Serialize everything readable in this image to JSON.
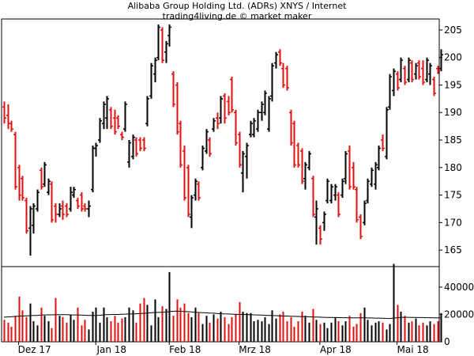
{
  "header": {
    "title": "Alibaba Group Holding Ltd. (ADRs) XNYS / Internet",
    "subtitle": "trading4living.de © market maker"
  },
  "colors": {
    "up": "#000000",
    "down": "#e01010",
    "frame": "#000000",
    "avg": "#000000"
  },
  "chart_data": [
    {
      "type": "ohlc",
      "title": "Alibaba Group Holding Ltd. (ADRs) XNYS / Internet",
      "ylim": [
        162,
        207
      ],
      "yticks": [
        165,
        170,
        175,
        180,
        185,
        190,
        195,
        200,
        205
      ],
      "grid": false,
      "month_labels": [
        "Dez 17",
        "Jan 18",
        "Feb 18",
        "Mrz 18",
        "Apr 18",
        "Mai 18"
      ],
      "month_label_index": [
        4,
        25,
        45,
        64,
        86,
        107
      ],
      "bars": [
        {
          "o": 191,
          "h": 192,
          "l": 188,
          "c": 189
        },
        {
          "o": 189.5,
          "h": 191.5,
          "l": 187,
          "c": 188
        },
        {
          "o": 188,
          "h": 188.5,
          "l": 186.5,
          "c": 187
        },
        {
          "o": 186,
          "h": 186.5,
          "l": 176,
          "c": 176.5
        },
        {
          "o": 180,
          "h": 180.5,
          "l": 174,
          "c": 175
        },
        {
          "o": 178,
          "h": 178.5,
          "l": 174,
          "c": 174.5
        },
        {
          "o": 174,
          "h": 174.5,
          "l": 168,
          "c": 168.5
        },
        {
          "o": 169,
          "h": 173,
          "l": 164,
          "c": 172.5
        },
        {
          "o": 169.5,
          "h": 173.5,
          "l": 168,
          "c": 173
        },
        {
          "o": 172.5,
          "h": 176,
          "l": 172,
          "c": 175.5
        },
        {
          "o": 179.5,
          "h": 180,
          "l": 176,
          "c": 176.5
        },
        {
          "o": 177,
          "h": 181,
          "l": 176.5,
          "c": 180.5
        },
        {
          "o": 175.5,
          "h": 178,
          "l": 175,
          "c": 177.5
        },
        {
          "o": 177,
          "h": 177.5,
          "l": 170,
          "c": 170.5
        },
        {
          "o": 173,
          "h": 173.5,
          "l": 170,
          "c": 171.5
        },
        {
          "o": 171.5,
          "h": 173.5,
          "l": 171,
          "c": 172.5
        },
        {
          "o": 173,
          "h": 174,
          "l": 170.5,
          "c": 171.5
        },
        {
          "o": 173,
          "h": 173.5,
          "l": 171,
          "c": 171.5
        },
        {
          "o": 172.5,
          "h": 176.5,
          "l": 172,
          "c": 175.5
        },
        {
          "o": 175,
          "h": 176.5,
          "l": 174.5,
          "c": 176
        },
        {
          "o": 174,
          "h": 174.5,
          "l": 172.5,
          "c": 173
        },
        {
          "o": 175,
          "h": 175.5,
          "l": 172,
          "c": 172.5
        },
        {
          "o": 173,
          "h": 173.5,
          "l": 172,
          "c": 172.5
        },
        {
          "o": 172.5,
          "h": 174,
          "l": 171,
          "c": 173
        },
        {
          "o": 176,
          "h": 184,
          "l": 175.5,
          "c": 183.5
        },
        {
          "o": 183.5,
          "h": 184.5,
          "l": 182,
          "c": 184
        },
        {
          "o": 185,
          "h": 189,
          "l": 184.5,
          "c": 188.5
        },
        {
          "o": 188,
          "h": 192,
          "l": 187,
          "c": 191.5
        },
        {
          "o": 189,
          "h": 193,
          "l": 187,
          "c": 192.5
        },
        {
          "o": 190.5,
          "h": 191,
          "l": 187,
          "c": 187.5
        },
        {
          "o": 189,
          "h": 190.5,
          "l": 186,
          "c": 186.5
        },
        {
          "o": 189,
          "h": 189.5,
          "l": 187,
          "c": 187.5
        },
        {
          "o": 186,
          "h": 186.5,
          "l": 185,
          "c": 185.5
        },
        {
          "o": 187,
          "h": 192,
          "l": 186.5,
          "c": 191.5
        },
        {
          "o": 181,
          "h": 185,
          "l": 180,
          "c": 184.5
        },
        {
          "o": 182,
          "h": 186,
          "l": 181.5,
          "c": 185.5
        },
        {
          "o": 185,
          "h": 185.5,
          "l": 182,
          "c": 182.5
        },
        {
          "o": 185,
          "h": 185.5,
          "l": 183,
          "c": 183.5
        },
        {
          "o": 185,
          "h": 185.5,
          "l": 183,
          "c": 183.5
        },
        {
          "o": 188,
          "h": 193,
          "l": 187.5,
          "c": 192.5
        },
        {
          "o": 193,
          "h": 199,
          "l": 192.5,
          "c": 198.5
        },
        {
          "o": 197,
          "h": 200,
          "l": 195.5,
          "c": 199.5
        },
        {
          "o": 200,
          "h": 206,
          "l": 199.5,
          "c": 205.5
        },
        {
          "o": 205,
          "h": 205.5,
          "l": 199,
          "c": 199.5
        },
        {
          "o": 201,
          "h": 203,
          "l": 199,
          "c": 202.5
        },
        {
          "o": 204,
          "h": 206,
          "l": 202,
          "c": 205.5
        },
        {
          "o": 197,
          "h": 197.5,
          "l": 191,
          "c": 191.5
        },
        {
          "o": 195,
          "h": 195.5,
          "l": 186,
          "c": 186.5
        },
        {
          "o": 188,
          "h": 188.5,
          "l": 180,
          "c": 180.5
        },
        {
          "o": 183,
          "h": 184,
          "l": 174,
          "c": 174.5
        },
        {
          "o": 180,
          "h": 180.5,
          "l": 171,
          "c": 171.5
        },
        {
          "o": 171,
          "h": 175,
          "l": 169,
          "c": 174.5
        },
        {
          "o": 175,
          "h": 178,
          "l": 174,
          "c": 177.5
        },
        {
          "o": 177,
          "h": 177.5,
          "l": 174,
          "c": 174.5
        },
        {
          "o": 180,
          "h": 184,
          "l": 179.5,
          "c": 183.5
        },
        {
          "o": 183,
          "h": 187,
          "l": 182.5,
          "c": 186.5
        },
        {
          "o": 185,
          "h": 185.5,
          "l": 182,
          "c": 182.5
        },
        {
          "o": 187,
          "h": 189,
          "l": 186.5,
          "c": 188.5
        },
        {
          "o": 189,
          "h": 190,
          "l": 187,
          "c": 188
        },
        {
          "o": 189,
          "h": 193,
          "l": 188,
          "c": 192.5
        },
        {
          "o": 193,
          "h": 193.5,
          "l": 188,
          "c": 189
        },
        {
          "o": 192,
          "h": 193,
          "l": 189.5,
          "c": 190
        },
        {
          "o": 196,
          "h": 196.5,
          "l": 190,
          "c": 190.5
        },
        {
          "o": 190,
          "h": 190.5,
          "l": 184,
          "c": 184.5
        },
        {
          "o": 186,
          "h": 186.5,
          "l": 180,
          "c": 180.5
        },
        {
          "o": 179,
          "h": 183,
          "l": 175.5,
          "c": 182.5
        },
        {
          "o": 182,
          "h": 184.5,
          "l": 178,
          "c": 184
        },
        {
          "o": 186,
          "h": 188.5,
          "l": 185.5,
          "c": 188
        },
        {
          "o": 186,
          "h": 189,
          "l": 185.5,
          "c": 188.5
        },
        {
          "o": 187,
          "h": 190.5,
          "l": 186.5,
          "c": 190
        },
        {
          "o": 190,
          "h": 192,
          "l": 188.5,
          "c": 191.5
        },
        {
          "o": 190,
          "h": 194,
          "l": 189.5,
          "c": 193.5
        },
        {
          "o": 187,
          "h": 193,
          "l": 186.5,
          "c": 192.5
        },
        {
          "o": 193,
          "h": 199,
          "l": 192,
          "c": 198.5
        },
        {
          "o": 199,
          "h": 201,
          "l": 198,
          "c": 200.5
        },
        {
          "o": 201,
          "h": 201.5,
          "l": 198.5,
          "c": 199
        },
        {
          "o": 198,
          "h": 199,
          "l": 194.5,
          "c": 195
        },
        {
          "o": 198,
          "h": 198.5,
          "l": 194,
          "c": 194.5
        },
        {
          "o": 190,
          "h": 190.5,
          "l": 184,
          "c": 184.5
        },
        {
          "o": 188,
          "h": 188.5,
          "l": 180,
          "c": 180.5
        },
        {
          "o": 184,
          "h": 184.5,
          "l": 180,
          "c": 180.5
        },
        {
          "o": 183,
          "h": 183.5,
          "l": 177,
          "c": 177.5
        },
        {
          "o": 178,
          "h": 181,
          "l": 176,
          "c": 180.5
        },
        {
          "o": 180,
          "h": 183,
          "l": 179.5,
          "c": 182.5
        },
        {
          "o": 178,
          "h": 178.5,
          "l": 171,
          "c": 171.5
        },
        {
          "o": 171,
          "h": 174,
          "l": 166,
          "c": 172.5
        },
        {
          "o": 169,
          "h": 169.5,
          "l": 166,
          "c": 167
        },
        {
          "o": 170,
          "h": 172,
          "l": 168.5,
          "c": 171.5
        },
        {
          "o": 174,
          "h": 178,
          "l": 173.5,
          "c": 177.5
        },
        {
          "o": 174,
          "h": 177,
          "l": 173.5,
          "c": 176.5
        },
        {
          "o": 175,
          "h": 177,
          "l": 174,
          "c": 176.5
        },
        {
          "o": 175,
          "h": 175.5,
          "l": 171,
          "c": 171.5
        },
        {
          "o": 175,
          "h": 178,
          "l": 174.5,
          "c": 177.5
        },
        {
          "o": 178,
          "h": 183,
          "l": 177,
          "c": 182.5
        },
        {
          "o": 183,
          "h": 184,
          "l": 176,
          "c": 176.5
        },
        {
          "o": 180,
          "h": 181,
          "l": 176,
          "c": 176.5
        },
        {
          "o": 176,
          "h": 176.5,
          "l": 170,
          "c": 170.5
        },
        {
          "o": 171,
          "h": 171.5,
          "l": 167,
          "c": 167.5
        },
        {
          "o": 170,
          "h": 174,
          "l": 169.5,
          "c": 173.5
        },
        {
          "o": 174,
          "h": 178,
          "l": 173.5,
          "c": 177.5
        },
        {
          "o": 177,
          "h": 180,
          "l": 176.5,
          "c": 179.5
        },
        {
          "o": 177,
          "h": 181,
          "l": 176,
          "c": 180.5
        },
        {
          "o": 180,
          "h": 184,
          "l": 179.5,
          "c": 183.5
        },
        {
          "o": 185,
          "h": 186,
          "l": 183,
          "c": 183.5
        },
        {
          "o": 182,
          "h": 191,
          "l": 181.5,
          "c": 190.5
        },
        {
          "o": 191,
          "h": 197,
          "l": 190.5,
          "c": 196.5
        },
        {
          "o": 194,
          "h": 198,
          "l": 193,
          "c": 197.5
        },
        {
          "o": 197,
          "h": 197.5,
          "l": 194,
          "c": 194.5
        },
        {
          "o": 196,
          "h": 200,
          "l": 195.5,
          "c": 199.5
        },
        {
          "o": 198,
          "h": 198.5,
          "l": 195,
          "c": 195.5
        },
        {
          "o": 196,
          "h": 200,
          "l": 195.5,
          "c": 199.5
        },
        {
          "o": 199,
          "h": 199.5,
          "l": 195.5,
          "c": 196
        },
        {
          "o": 197,
          "h": 199,
          "l": 196,
          "c": 198.5
        },
        {
          "o": 199,
          "h": 199.5,
          "l": 196,
          "c": 196.5
        },
        {
          "o": 198,
          "h": 199.5,
          "l": 195,
          "c": 195.5
        },
        {
          "o": 196,
          "h": 200,
          "l": 195.5,
          "c": 199.5
        },
        {
          "o": 197,
          "h": 199,
          "l": 195,
          "c": 198.5
        },
        {
          "o": 196,
          "h": 196.5,
          "l": 193,
          "c": 193.5
        },
        {
          "o": 198,
          "h": 198.5,
          "l": 197,
          "c": 197.5
        },
        {
          "o": 198,
          "h": 201.5,
          "l": 197.5,
          "c": 200.5
        }
      ]
    },
    {
      "type": "bar",
      "series_name": "volume",
      "ylim": [
        0,
        55000
      ],
      "yticks": [
        0,
        20000,
        40000
      ],
      "ytick_labels": [
        "0",
        "20000",
        "40000"
      ],
      "values": [
        16000,
        14000,
        11000,
        19000,
        33000,
        23000,
        18000,
        28000,
        15000,
        12000,
        25000,
        19000,
        15000,
        10000,
        32000,
        19000,
        18000,
        14000,
        20000,
        16000,
        25000,
        12000,
        16000,
        9000,
        22000,
        25000,
        14000,
        25000,
        18000,
        15000,
        19000,
        14000,
        17000,
        18000,
        25000,
        23000,
        14000,
        28000,
        32000,
        27000,
        12000,
        31000,
        18000,
        26000,
        24000,
        51000,
        19000,
        31000,
        25000,
        28000,
        21000,
        18000,
        25000,
        21000,
        13000,
        19000,
        14000,
        20000,
        17000,
        22000,
        18000,
        13000,
        18000,
        20000,
        29000,
        22000,
        21000,
        21000,
        15000,
        16000,
        15000,
        18000,
        13000,
        23000,
        17000,
        20000,
        22000,
        15000,
        18000,
        11000,
        15000,
        22000,
        19000,
        14000,
        24000,
        16000,
        13000,
        14000,
        10000,
        14000,
        18000,
        15000,
        12000,
        15000,
        19000,
        11000,
        13000,
        21000,
        25000,
        16000,
        12000,
        14000,
        15000,
        14000,
        9000,
        13000,
        57000,
        27000,
        22000,
        19000,
        14000,
        15000,
        17000,
        12000,
        14000,
        12000,
        15000,
        13000,
        15000,
        21000
      ],
      "avg_values": [
        18000,
        18200,
        18300,
        18500,
        18700,
        18900,
        19000,
        19100,
        19200,
        19300,
        19500,
        19600,
        19700,
        19700,
        19800,
        19800,
        19800,
        19800,
        19700,
        19600,
        19600,
        19500,
        19400,
        19300,
        19300,
        19300,
        19400,
        19600,
        19800,
        19900,
        20000,
        20000,
        20100,
        20200,
        20300,
        20400,
        20500,
        20600,
        20800,
        21000,
        21200,
        21400,
        21500,
        21600,
        21700,
        22000,
        22300,
        22400,
        22300,
        22200,
        22000,
        21800,
        21600,
        21400,
        21300,
        21200,
        21000,
        20900,
        20700,
        20500,
        20400,
        20300,
        20200,
        20100,
        20000,
        20000,
        19900,
        19800,
        19700,
        19600,
        19500,
        19400,
        19300,
        19200,
        19100,
        19000,
        18900,
        18800,
        18700,
        18600,
        18500,
        18400,
        18400,
        18300,
        18200,
        18100,
        18000,
        17900,
        17800,
        17800,
        17700,
        17700,
        17600,
        17600,
        17500,
        17500,
        17500,
        17500,
        17500,
        17400,
        17400,
        17300,
        17300,
        17200,
        17100,
        17000,
        17300,
        17600,
        17800,
        17900,
        17900,
        17800,
        17800,
        17700,
        17700,
        17600,
        17600,
        17500,
        17500,
        17400
      ]
    }
  ]
}
